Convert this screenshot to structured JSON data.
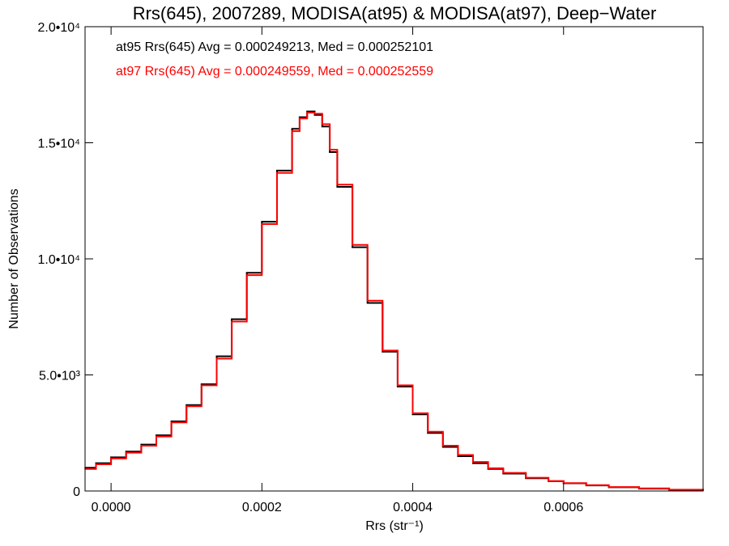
{
  "chart_data": {
    "type": "line",
    "title": "Rrs(645), 2007289, MODISA(at95) & MODISA(at97), Deep−Water",
    "xlabel": "Rrs (str⁻¹)",
    "ylabel": "Number of Observations",
    "xlim": [
      -3.45e-05,
      0.000785
    ],
    "ylim": [
      0,
      20000
    ],
    "x_ticks": [
      {
        "value": 0.0,
        "label": "0.0000"
      },
      {
        "value": 0.0002,
        "label": "0.0002"
      },
      {
        "value": 0.0004,
        "label": "0.0004"
      },
      {
        "value": 0.0006,
        "label": "0.0006"
      }
    ],
    "y_ticks": [
      {
        "value": 0,
        "label": "0"
      },
      {
        "value": 5000,
        "label": "5.0•10³"
      },
      {
        "value": 10000,
        "label": "1.0•10⁴"
      },
      {
        "value": 15000,
        "label": "1.5•10⁴"
      },
      {
        "value": 20000,
        "label": "2.0•10⁴"
      }
    ],
    "grid": false,
    "step": true,
    "series": [
      {
        "name": "at95",
        "color": "#000000",
        "stats_text": "at95 Rrs(645) Avg = 0.000249213, Med = 0.000252101",
        "x": [
          -3.45e-05,
          -2e-05,
          0.0,
          2e-05,
          4e-05,
          6e-05,
          8e-05,
          0.0001,
          0.00012,
          0.00014,
          0.00016,
          0.00018,
          0.0002,
          0.00022,
          0.00024,
          0.00025,
          0.00026,
          0.00027,
          0.00028,
          0.00029,
          0.0003,
          0.00032,
          0.00034,
          0.00036,
          0.00038,
          0.0004,
          0.00042,
          0.00044,
          0.00046,
          0.00048,
          0.0005,
          0.00052,
          0.00055,
          0.00058,
          0.0006,
          0.00063,
          0.00066,
          0.0007,
          0.00074,
          0.000785
        ],
        "y": [
          1000,
          1200,
          1450,
          1700,
          2000,
          2400,
          3000,
          3700,
          4600,
          5800,
          7400,
          9400,
          11600,
          13800,
          15600,
          16100,
          16350,
          16200,
          15700,
          14600,
          13100,
          10500,
          8100,
          6000,
          4500,
          3300,
          2500,
          1900,
          1500,
          1200,
          950,
          750,
          550,
          420,
          330,
          240,
          160,
          100,
          50,
          20
        ]
      },
      {
        "name": "at97",
        "color": "#ff0000",
        "stats_text": "at97 Rrs(645) Avg = 0.000249559, Med = 0.000252559",
        "x": [
          -3.45e-05,
          -2e-05,
          0.0,
          2e-05,
          4e-05,
          6e-05,
          8e-05,
          0.0001,
          0.00012,
          0.00014,
          0.00016,
          0.00018,
          0.0002,
          0.00022,
          0.00024,
          0.00025,
          0.00026,
          0.00027,
          0.00028,
          0.00029,
          0.0003,
          0.00032,
          0.00034,
          0.00036,
          0.00038,
          0.0004,
          0.00042,
          0.00044,
          0.00046,
          0.00048,
          0.0005,
          0.00052,
          0.00055,
          0.00058,
          0.0006,
          0.00063,
          0.00066,
          0.0007,
          0.00074,
          0.000785
        ],
        "y": [
          950,
          1150,
          1400,
          1650,
          1950,
          2350,
          2950,
          3650,
          4550,
          5700,
          7300,
          9300,
          11500,
          13700,
          15500,
          16050,
          16300,
          16250,
          15800,
          14700,
          13200,
          10600,
          8200,
          6050,
          4550,
          3350,
          2550,
          1950,
          1550,
          1250,
          980,
          780,
          570,
          430,
          340,
          250,
          170,
          110,
          55,
          25
        ]
      }
    ]
  }
}
